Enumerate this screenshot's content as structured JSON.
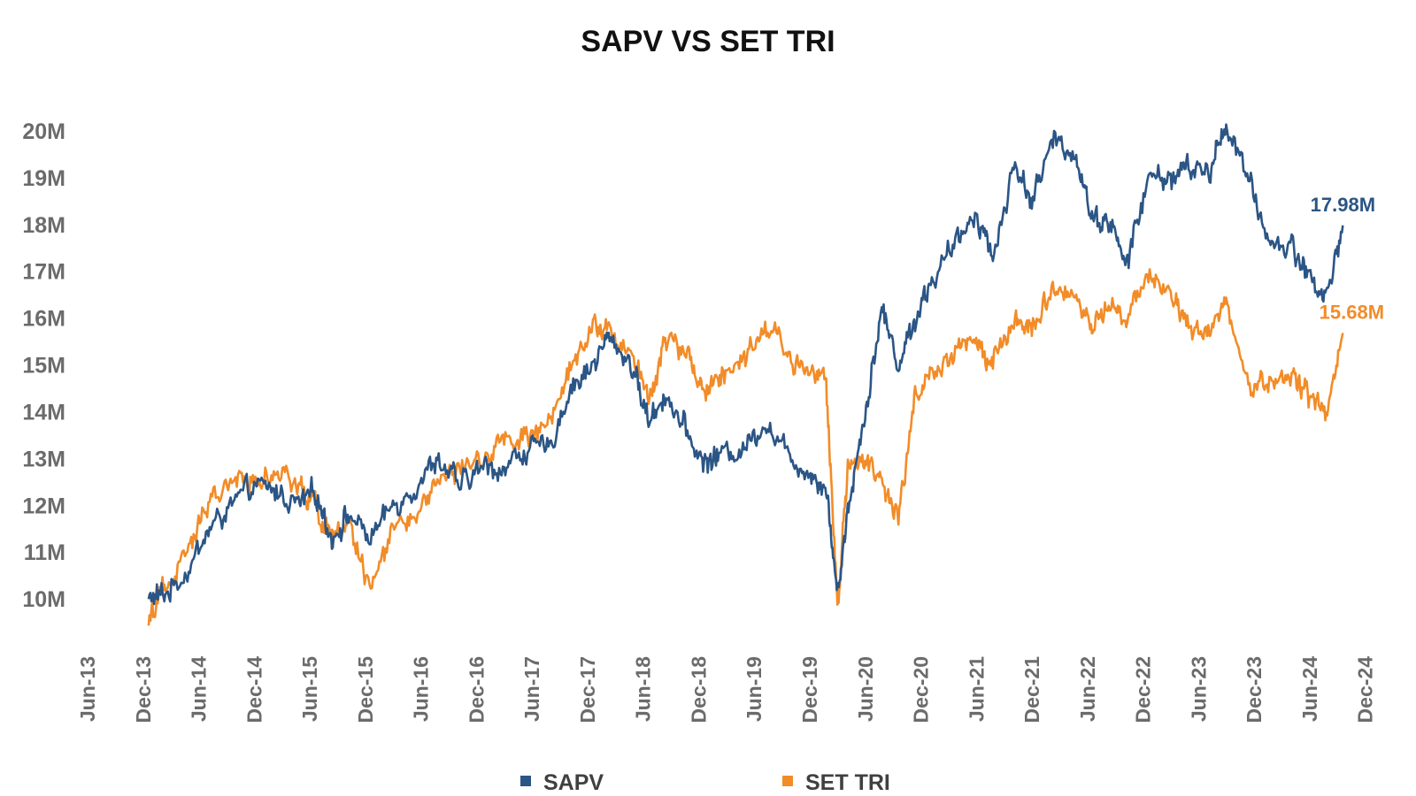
{
  "chart_data": {
    "type": "line",
    "title": "SAPV VS SET TRI",
    "xlabel": "",
    "ylabel": "",
    "y_tick_labels": [
      "10M",
      "11M",
      "12M",
      "13M",
      "14M",
      "15M",
      "16M",
      "17M",
      "18M",
      "19M",
      "20M"
    ],
    "y_tick_values": [
      10,
      11,
      12,
      13,
      14,
      15,
      16,
      17,
      18,
      19,
      20
    ],
    "ylim": [
      9.0,
      21.0
    ],
    "y_unit": "M",
    "x_tick_labels": [
      "Jun-13",
      "Dec-13",
      "Jun-14",
      "Dec-14",
      "Jun-15",
      "Dec-15",
      "Jun-16",
      "Dec-16",
      "Jun-17",
      "Dec-17",
      "Jun-18",
      "Dec-18",
      "Jun-19",
      "Dec-19",
      "Jun-20",
      "Dec-20",
      "Jun-21",
      "Dec-21",
      "Jun-22",
      "Dec-22",
      "Jun-23",
      "Dec-23",
      "Jun-24",
      "Dec-24"
    ],
    "x_tick_values": [
      2013.417,
      2013.917,
      2014.417,
      2014.917,
      2015.417,
      2015.917,
      2016.417,
      2016.917,
      2017.417,
      2017.917,
      2018.417,
      2018.917,
      2019.417,
      2019.917,
      2020.417,
      2020.917,
      2021.417,
      2021.917,
      2022.417,
      2022.917,
      2023.417,
      2023.917,
      2024.417,
      2024.917
    ],
    "xlim": [
      2013.25,
      2025.0
    ],
    "legend_position": "bottom",
    "series": [
      {
        "name": "SAPV",
        "color": "#2b5585",
        "end_label": "17.98M",
        "x": [
          2013.95,
          2014.1,
          2014.3,
          2014.5,
          2014.7,
          2014.9,
          2015.1,
          2015.3,
          2015.45,
          2015.6,
          2015.75,
          2015.95,
          2016.15,
          2016.35,
          2016.55,
          2016.75,
          2016.95,
          2017.15,
          2017.35,
          2017.55,
          2017.75,
          2017.95,
          2018.1,
          2018.3,
          2018.45,
          2018.6,
          2018.8,
          2018.95,
          2019.1,
          2019.3,
          2019.5,
          2019.7,
          2019.9,
          2020.05,
          2020.15,
          2020.25,
          2020.4,
          2020.55,
          2020.7,
          2020.85,
          2021.0,
          2021.2,
          2021.4,
          2021.55,
          2021.75,
          2021.9,
          2022.1,
          2022.3,
          2022.45,
          2022.6,
          2022.75,
          2022.95,
          2023.15,
          2023.3,
          2023.5,
          2023.65,
          2023.85,
          2024.05,
          2024.25,
          2024.4,
          2024.55,
          2024.7
        ],
        "values": [
          10.0,
          10.1,
          10.6,
          11.5,
          12.0,
          12.4,
          12.3,
          12.0,
          12.3,
          11.3,
          11.8,
          11.3,
          12.0,
          12.4,
          13.0,
          12.4,
          12.8,
          12.8,
          13.2,
          13.2,
          14.5,
          15.0,
          15.6,
          15.0,
          13.8,
          14.4,
          13.5,
          12.9,
          13.1,
          13.2,
          13.8,
          13.1,
          12.7,
          12.4,
          10.1,
          12.0,
          14.0,
          16.2,
          15.0,
          16.0,
          16.8,
          17.5,
          18.3,
          17.3,
          19.3,
          18.5,
          19.8,
          19.5,
          18.1,
          18.1,
          17.1,
          19.0,
          19.0,
          19.2,
          19.1,
          20.2,
          18.9,
          17.6,
          17.5,
          16.9,
          16.4,
          17.98
        ]
      },
      {
        "name": "SET TRI",
        "color": "#f28c28",
        "end_label": "15.68M",
        "x": [
          2013.95,
          2014.1,
          2014.3,
          2014.5,
          2014.7,
          2014.9,
          2015.1,
          2015.3,
          2015.45,
          2015.6,
          2015.75,
          2015.95,
          2016.15,
          2016.35,
          2016.55,
          2016.75,
          2016.95,
          2017.15,
          2017.35,
          2017.55,
          2017.75,
          2017.95,
          2018.1,
          2018.3,
          2018.45,
          2018.6,
          2018.8,
          2018.95,
          2019.1,
          2019.3,
          2019.5,
          2019.7,
          2019.9,
          2020.05,
          2020.15,
          2020.25,
          2020.4,
          2020.55,
          2020.7,
          2020.85,
          2021.0,
          2021.2,
          2021.4,
          2021.55,
          2021.75,
          2021.9,
          2022.1,
          2022.3,
          2022.45,
          2022.6,
          2022.75,
          2022.95,
          2023.15,
          2023.3,
          2023.5,
          2023.65,
          2023.85,
          2024.05,
          2024.25,
          2024.4,
          2024.55,
          2024.7
        ],
        "values": [
          9.5,
          10.3,
          11.0,
          12.0,
          12.6,
          12.5,
          12.7,
          12.3,
          12.0,
          11.3,
          11.6,
          10.2,
          11.5,
          11.8,
          12.5,
          12.8,
          12.9,
          13.4,
          13.5,
          13.7,
          15.0,
          15.8,
          15.7,
          15.2,
          14.2,
          15.6,
          15.2,
          14.4,
          14.9,
          15.1,
          15.8,
          15.2,
          14.9,
          14.7,
          9.8,
          13.0,
          12.9,
          12.6,
          11.7,
          14.3,
          14.8,
          15.3,
          15.6,
          15.0,
          15.9,
          15.8,
          16.6,
          16.4,
          15.8,
          16.4,
          15.8,
          17.0,
          16.5,
          15.8,
          15.8,
          16.3,
          14.6,
          14.6,
          14.7,
          14.3,
          13.9,
          15.68
        ]
      }
    ]
  }
}
